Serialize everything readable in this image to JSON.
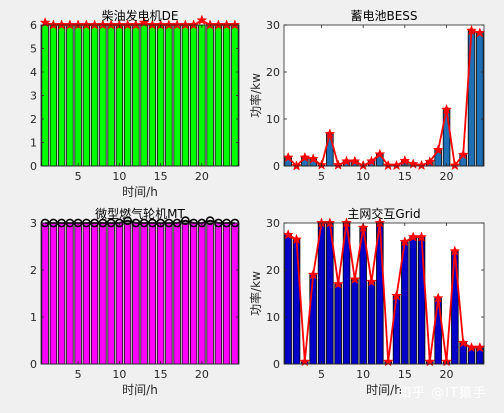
{
  "chart_data": [
    {
      "type": "bar",
      "title": "柴油发电机DE",
      "xlabel": "时间/h",
      "ylabel": "",
      "xlim": [
        0.5,
        24.5
      ],
      "ylim": [
        0,
        6
      ],
      "xticks": [
        5,
        10,
        15,
        20
      ],
      "yticks": [
        0,
        1,
        2,
        3,
        4,
        5,
        6
      ],
      "bar_color": "#00ff00",
      "line_color": "#ff0000",
      "marker": "star",
      "marker_color": "#ff0000",
      "x": [
        1,
        2,
        3,
        4,
        5,
        6,
        7,
        8,
        9,
        10,
        11,
        12,
        13,
        14,
        15,
        16,
        17,
        18,
        19,
        20,
        21,
        22,
        23,
        24
      ],
      "values": [
        6.1,
        6.0,
        6.0,
        6.0,
        6.0,
        6.0,
        6.0,
        6.0,
        6.0,
        6.0,
        6.0,
        6.0,
        6.1,
        6.0,
        6.0,
        6.0,
        6.0,
        6.0,
        6.0,
        6.2,
        6.0,
        6.0,
        6.0,
        6.0
      ]
    },
    {
      "type": "bar",
      "title": "蓄电池BESS",
      "xlabel": "",
      "ylabel": "功率/kw",
      "xlim": [
        0.5,
        24.5
      ],
      "ylim": [
        0,
        30
      ],
      "xticks": [
        5,
        10,
        15,
        20
      ],
      "yticks": [
        0,
        10,
        20,
        30
      ],
      "bar_color": "#1f6fb4",
      "line_color": "#ff0000",
      "marker": "star",
      "marker_color": "#ff0000",
      "x": [
        1,
        2,
        3,
        4,
        5,
        6,
        7,
        8,
        9,
        10,
        11,
        12,
        13,
        14,
        15,
        16,
        17,
        18,
        19,
        20,
        21,
        22,
        23,
        24
      ],
      "values": [
        1.8,
        0,
        1.8,
        1.5,
        0.2,
        6.8,
        0.2,
        1.0,
        1.0,
        0.1,
        1.0,
        2.5,
        0.1,
        0.1,
        1.1,
        0.4,
        0.1,
        0.9,
        3.4,
        12.0,
        0.1,
        2.4,
        28.8,
        28.3
      ]
    },
    {
      "type": "bar",
      "title": "微型燃气轮机MT",
      "xlabel": "时间/h",
      "ylabel": "",
      "xlim": [
        0.5,
        24.5
      ],
      "ylim": [
        0,
        3
      ],
      "xticks": [
        5,
        10,
        15,
        20
      ],
      "yticks": [
        0,
        1,
        2,
        3
      ],
      "bar_color": "#ff00ff",
      "line_color": "#000000",
      "marker": "circle",
      "marker_color": "#000000",
      "x": [
        1,
        2,
        3,
        4,
        5,
        6,
        7,
        8,
        9,
        10,
        11,
        12,
        13,
        14,
        15,
        16,
        17,
        18,
        19,
        20,
        21,
        22,
        23,
        24
      ],
      "values": [
        3.0,
        3.0,
        3.0,
        3.0,
        3.0,
        3.0,
        3.0,
        3.0,
        3.0,
        3.0,
        3.05,
        3.0,
        3.0,
        3.0,
        3.0,
        3.0,
        3.0,
        3.05,
        3.0,
        3.0,
        3.05,
        3.0,
        3.0,
        3.0
      ]
    },
    {
      "type": "bar",
      "title": "主网交互Grid",
      "xlabel": "时间/h",
      "ylabel": "功率/kw",
      "xlim": [
        0.5,
        24.5
      ],
      "ylim": [
        0,
        30
      ],
      "xticks": [
        5,
        10,
        15,
        20
      ],
      "yticks": [
        0,
        10,
        20,
        30
      ],
      "bar_color": "#0000c8",
      "line_color": "#ff0000",
      "marker": "star",
      "marker_color": "#ff0000",
      "x": [
        1,
        2,
        3,
        4,
        5,
        6,
        7,
        8,
        9,
        10,
        11,
        12,
        13,
        14,
        15,
        16,
        17,
        18,
        19,
        20,
        21,
        22,
        23,
        24
      ],
      "values": [
        27.5,
        26.5,
        0.5,
        19,
        30,
        30,
        17,
        30,
        18,
        29,
        17.5,
        30,
        0.5,
        14.5,
        26,
        27,
        27,
        0.5,
        14,
        0.5,
        24,
        4.5,
        3.5,
        3.5
      ]
    }
  ],
  "watermark": "知乎 @IT猿手"
}
